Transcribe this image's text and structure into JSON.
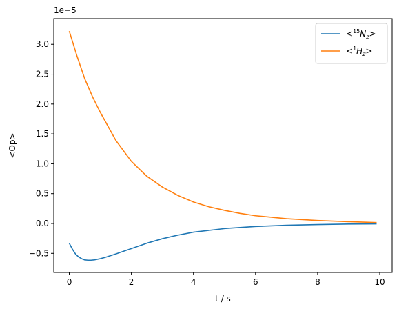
{
  "chart_data": {
    "type": "line",
    "xlabel": "t / s",
    "ylabel": "<Op>",
    "offset_label": "1e−5",
    "xlim": [
      -0.5,
      10.4
    ],
    "ylim": [
      -0.82,
      3.43
    ],
    "x_ticks": [
      0,
      2,
      4,
      6,
      8,
      10
    ],
    "x_tick_labels": [
      "0",
      "2",
      "4",
      "6",
      "8",
      "10"
    ],
    "y_ticks": [
      -0.5,
      0.0,
      0.5,
      1.0,
      1.5,
      2.0,
      2.5,
      3.0
    ],
    "y_tick_labels": [
      "−0.5",
      "0.0",
      "0.5",
      "1.0",
      "1.5",
      "2.0",
      "2.5",
      "3.0"
    ],
    "grid": false,
    "legend_position": "top-right",
    "series": [
      {
        "name": "<15Nz>",
        "legend_label": {
          "pre": "<",
          "sup": "15",
          "main": "N",
          "sub": "z",
          "post": ">"
        },
        "color": "#1f77b4",
        "x": [
          0,
          0.1,
          0.2,
          0.3,
          0.4,
          0.5,
          0.6,
          0.7,
          0.8,
          1.0,
          1.2,
          1.5,
          2.0,
          2.5,
          3.0,
          3.5,
          4.0,
          5.0,
          6.0,
          7.0,
          8.0,
          9.0,
          9.9
        ],
        "values": [
          -0.33,
          -0.43,
          -0.51,
          -0.56,
          -0.59,
          -0.61,
          -0.615,
          -0.615,
          -0.61,
          -0.59,
          -0.56,
          -0.51,
          -0.42,
          -0.33,
          -0.255,
          -0.195,
          -0.145,
          -0.085,
          -0.05,
          -0.03,
          -0.018,
          -0.01,
          -0.007
        ]
      },
      {
        "name": "<1Hz>",
        "legend_label": {
          "pre": "<",
          "sup": "1",
          "main": "H",
          "sub": "z",
          "post": ">"
        },
        "color": "#ff7f0e",
        "x": [
          0,
          0.25,
          0.5,
          0.75,
          1.0,
          1.5,
          2.0,
          2.5,
          3.0,
          3.5,
          4.0,
          4.5,
          5.0,
          5.5,
          6.0,
          7.0,
          8.0,
          9.0,
          9.9
        ],
        "values": [
          3.22,
          2.8,
          2.42,
          2.12,
          1.86,
          1.39,
          1.04,
          0.79,
          0.61,
          0.47,
          0.36,
          0.28,
          0.22,
          0.17,
          0.13,
          0.08,
          0.05,
          0.03,
          0.015
        ]
      }
    ]
  }
}
